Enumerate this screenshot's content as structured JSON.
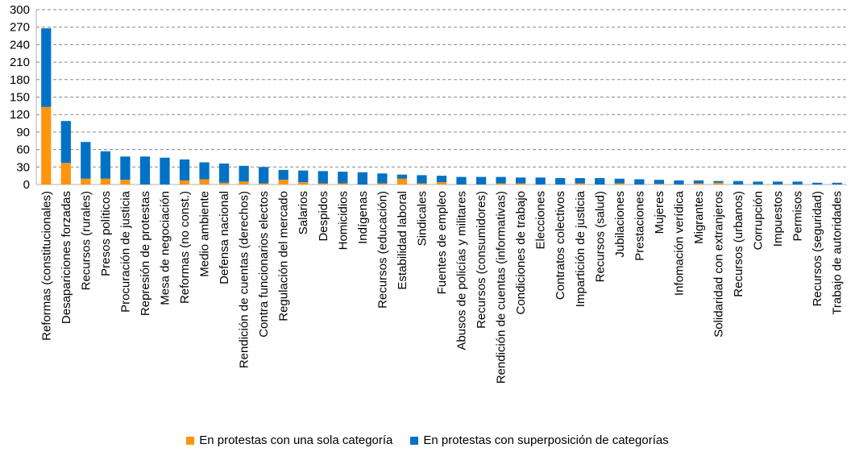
{
  "chart_data": {
    "type": "bar",
    "stacked": true,
    "ylim": [
      0,
      300
    ],
    "yticks": [
      0,
      30,
      60,
      90,
      120,
      150,
      180,
      210,
      240,
      270,
      300
    ],
    "grid": true,
    "legend_position": "bottom",
    "categories": [
      "Reformas (constitucionales)",
      "Desapariciones forzadas",
      "Recursos (rurales)",
      "Presos políticos",
      "Procuración de justicia",
      "Represión de protestas",
      "Mesa de negociación",
      "Reformas (no const.)",
      "Medio ambiente",
      "Defensa nacional",
      "Rendición de cuentas (derechos)",
      "Contra funcionarios electos",
      "Regulación del mercado",
      "Salarios",
      "Despidos",
      "Homicidios",
      "Indígenas",
      "Recursos (educación)",
      "Estabilidad laboral",
      "Sindicales",
      "Fuentes de empleo",
      "Abusos de policías y militares",
      "Recursos (consumidores)",
      "Rendición de cuentas (informativas)",
      "Condiciones de trabajo",
      "Elecciones",
      "Contratos colectivos",
      "Impartición de justicia",
      "Recursos (salud)",
      "Jubilaciones",
      "Prestaciones",
      "Mujeres",
      "Infomación verídica",
      "Migrantes",
      "Solidaridad con extranjeros",
      "Recursos (urbanos)",
      "Corrupción",
      "Impuestos",
      "Permisos",
      "Recursos (seguridad)",
      "Trabajo de autoridades"
    ],
    "series": [
      {
        "name": "En protestas con una sola categoría",
        "color": "#ff950e",
        "values": [
          133,
          37,
          10,
          10,
          8,
          0,
          0,
          7,
          9,
          3,
          5,
          2,
          8,
          4,
          2,
          2,
          0,
          2,
          10,
          2,
          4,
          0,
          0,
          2,
          2,
          0,
          0,
          2,
          0,
          2,
          0,
          1,
          0,
          2,
          3,
          0,
          0,
          0,
          0,
          0,
          0
        ]
      },
      {
        "name": "En protestas con superposición de categorías",
        "color": "#0072c6",
        "values": [
          135,
          72,
          63,
          47,
          40,
          48,
          46,
          36,
          29,
          33,
          27,
          28,
          17,
          20,
          21,
          20,
          21,
          17,
          7,
          14,
          11,
          13,
          13,
          11,
          10,
          12,
          11,
          9,
          11,
          8,
          9,
          7,
          7,
          5,
          3,
          6,
          5,
          5,
          5,
          3,
          3
        ]
      }
    ]
  }
}
